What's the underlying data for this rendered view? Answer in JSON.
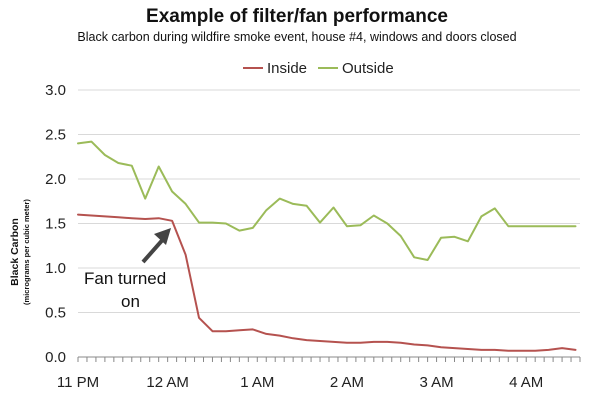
{
  "chart_data": {
    "type": "line",
    "title": "Example of filter/fan performance",
    "subtitle": "Black carbon during wildfire smoke event, house #4, windows and doors closed",
    "ylabel": "Black Carbon",
    "ylabel_unit": "(micrograms per cubic meter)",
    "xlabel": "",
    "ylim": [
      0,
      3.0
    ],
    "yticks": [
      "0.0",
      "0.5",
      "1.0",
      "1.5",
      "2.0",
      "2.5",
      "3.0"
    ],
    "x_hours": [
      0,
      0.25,
      0.5,
      0.75,
      1,
      1.25,
      1.5,
      1.75,
      2,
      2.25,
      2.5,
      2.75,
      3,
      3.25,
      3.5,
      3.75,
      4,
      4.25,
      4.5,
      4.75,
      5,
      5.25,
      5.5,
      5.75,
      6,
      6.25,
      6.5,
      6.75,
      7,
      7.25,
      7.5,
      7.75,
      8,
      8.25,
      8.5,
      8.75,
      9,
      9.25,
      9.5,
      9.75,
      10,
      10.25,
      10.5,
      10.75,
      11,
      11.25,
      11.5,
      11.75,
      12,
      12.25,
      12.5,
      12.75,
      13,
      13.25,
      13.5,
      13.75,
      14,
      14.25,
      14.5,
      14.75,
      15,
      15.25,
      15.5,
      15.75,
      16,
      16.25,
      16.5,
      16.75,
      17,
      17.25,
      17.5,
      17.75,
      18,
      18.25,
      18.5,
      18.75,
      19,
      19.25,
      19.5,
      19.75,
      20,
      20.25,
      20.5,
      20.75,
      21,
      21.25,
      21.5,
      21.75,
      22,
      22.25,
      22.5,
      22.75,
      23,
      23.25,
      23.5,
      23.75,
      24,
      24.25,
      24.5,
      24.75,
      25,
      25.25,
      25.5,
      25.75,
      26,
      26.25,
      26.5,
      26.75,
      27,
      27.25,
      27.5,
      27.75,
      28,
      28.25,
      28.5,
      28.75,
      29,
      29.25,
      29.5,
      29.75,
      30,
      30.25,
      30.5,
      30.75,
      31,
      31.25,
      31.5,
      31.75,
      32,
      32.25,
      32.5,
      32.75,
      33,
      33.25,
      33.5,
      33.75,
      34,
      34.25,
      34.5,
      34.75,
      35,
      35.25,
      35.5,
      35.75,
      36,
      36.25,
      36.5,
      36.75,
      37,
      37.25,
      37.5,
      37.75,
      38,
      38.25,
      38.5,
      38.75,
      39,
      39.25,
      39.5,
      39.75,
      40,
      40.25,
      40.5,
      40.75,
      41,
      41.25,
      41.5,
      41.75,
      42,
      42.25,
      42.5,
      42.75,
      43,
      43.25,
      43.5,
      43.75,
      44,
      44.25,
      44.5,
      44.75,
      45,
      45.25,
      45.5,
      45.75,
      46,
      46.25,
      46.5,
      46.75,
      47,
      47.25,
      47.5,
      47.75,
      48,
      48.25,
      48.5,
      48.75,
      49,
      49.25,
      49.5,
      49.75,
      50,
      50.25,
      50.5,
      50.75,
      51,
      51.25,
      51.5,
      51.75,
      52,
      52.25,
      52.5,
      52.75,
      53,
      53.25,
      53.5,
      53.75,
      54,
      54.25,
      54.5,
      54.75,
      55,
      55.25,
      55.5,
      55.75,
      56
    ],
    "x_tick_labels": [
      "11 PM",
      "12 AM",
      "1 AM",
      "2 AM",
      "3 AM",
      "4 AM"
    ],
    "x_tick_positions": [
      0,
      1,
      2,
      3,
      4,
      5
    ],
    "x_range": [
      0,
      5.6
    ],
    "series": [
      {
        "name": "Inside",
        "color": "#b5524f",
        "x": [
          0,
          0.15,
          0.3,
          0.45,
          0.6,
          0.75,
          0.9,
          1.05,
          1.2,
          1.35,
          1.5,
          1.65,
          1.8,
          1.95,
          2.1,
          2.25,
          2.4,
          2.55,
          2.7,
          2.85,
          3.0,
          3.15,
          3.3,
          3.45,
          3.6,
          3.75,
          3.9,
          4.05,
          4.2,
          4.35,
          4.5,
          4.65,
          4.8,
          4.95,
          5.1,
          5.25,
          5.4,
          5.55
        ],
        "values": [
          1.6,
          1.59,
          1.58,
          1.57,
          1.56,
          1.55,
          1.56,
          1.53,
          1.15,
          0.44,
          0.29,
          0.29,
          0.3,
          0.31,
          0.26,
          0.24,
          0.21,
          0.19,
          0.18,
          0.17,
          0.16,
          0.16,
          0.17,
          0.17,
          0.16,
          0.14,
          0.13,
          0.11,
          0.1,
          0.09,
          0.08,
          0.08,
          0.07,
          0.07,
          0.07,
          0.08,
          0.1,
          0.08
        ]
      },
      {
        "name": "Outside",
        "color": "#9bbb59",
        "x": [
          0,
          0.15,
          0.3,
          0.45,
          0.6,
          0.75,
          0.9,
          1.05,
          1.2,
          1.35,
          1.5,
          1.65,
          1.8,
          1.95,
          2.1,
          2.25,
          2.4,
          2.55,
          2.7,
          2.85,
          3.0,
          3.15,
          3.3,
          3.45,
          3.6,
          3.75,
          3.9,
          4.05,
          4.2,
          4.35,
          4.5,
          4.65,
          4.8,
          4.95,
          5.1,
          5.25,
          5.4,
          5.55
        ],
        "values": [
          2.4,
          2.42,
          2.27,
          2.18,
          2.15,
          1.78,
          2.14,
          1.86,
          1.72,
          1.51,
          1.51,
          1.5,
          1.42,
          1.45,
          1.65,
          1.78,
          1.72,
          1.7,
          1.51,
          1.68,
          1.47,
          1.48,
          1.59,
          1.5,
          1.36,
          1.12,
          1.09,
          1.34,
          1.35,
          1.3,
          1.58,
          1.67,
          1.47,
          1.47,
          1.47,
          1.47,
          1.47,
          1.47
        ]
      }
    ],
    "legend_position": "top",
    "grid": "horizontal",
    "annotation": {
      "line1": "Fan turned",
      "line2": "on"
    }
  }
}
